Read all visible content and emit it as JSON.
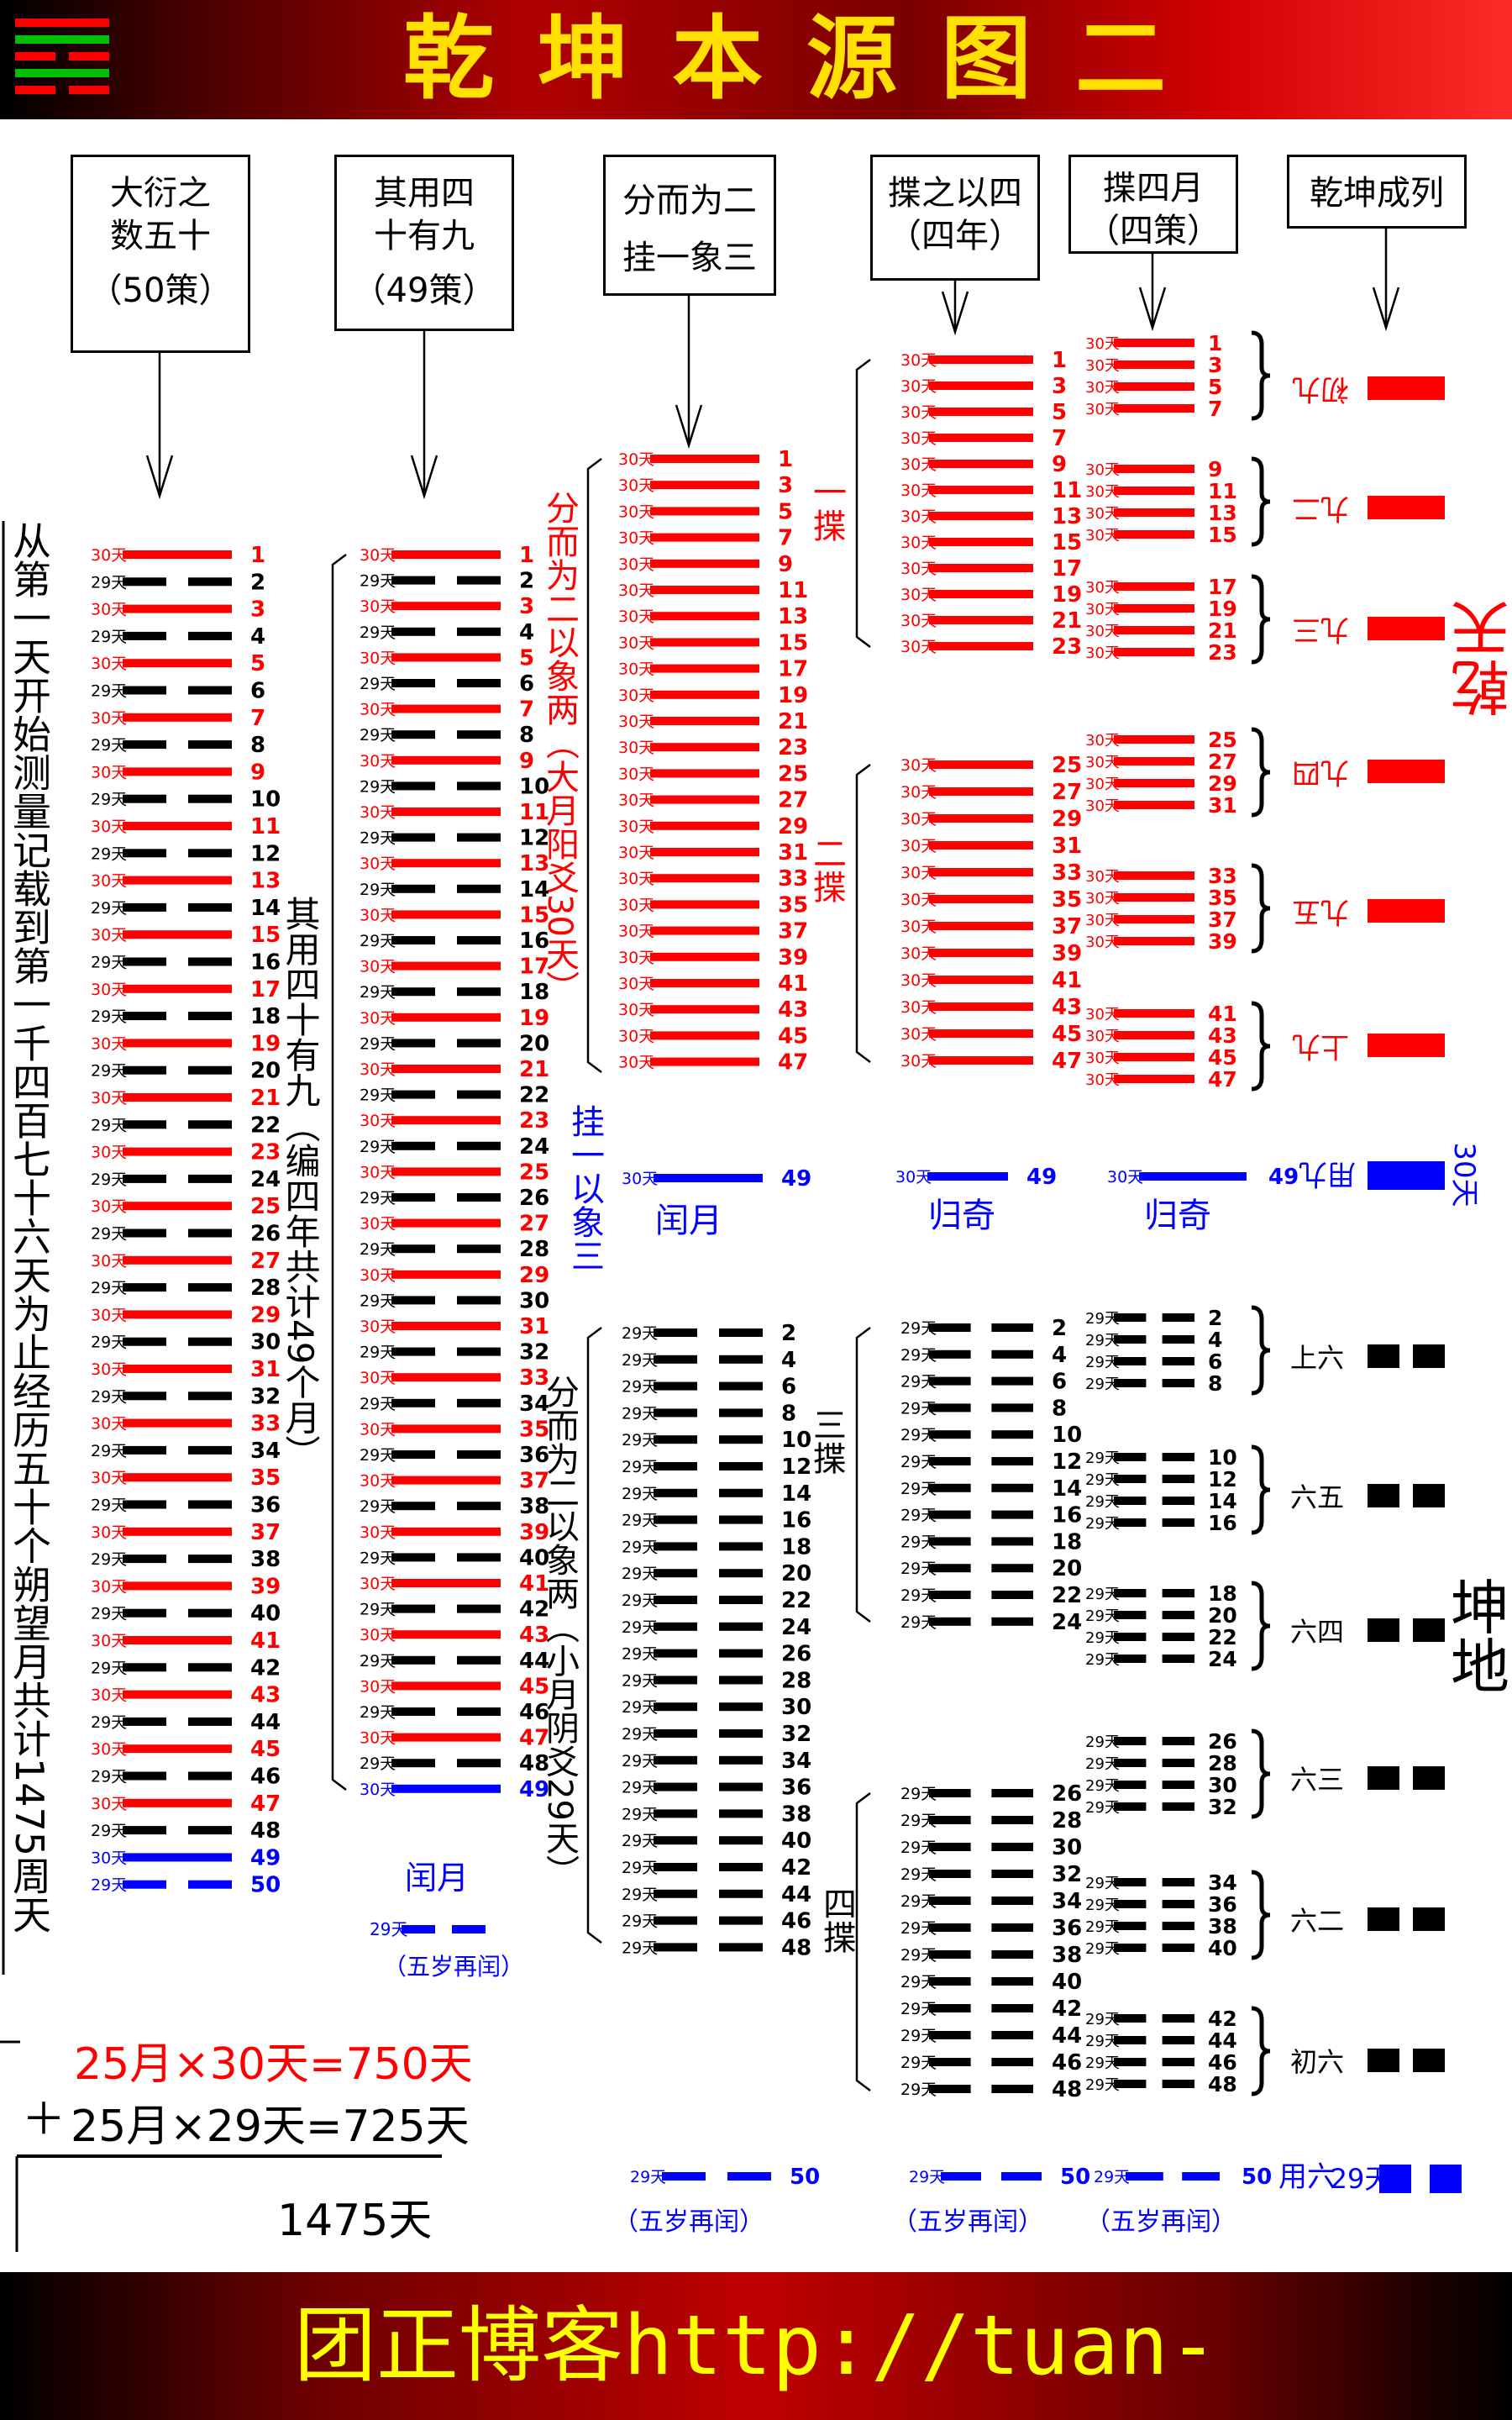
{
  "title": "乾坤本源图二",
  "footer": "团正博客http://tuan-zheng.blog.sohu.com",
  "headers": {
    "c1": {
      "line1": "大衍之",
      "line2": "数五十",
      "sub": "（50策）"
    },
    "c2": {
      "line1": "其用四",
      "line2": "十有九",
      "sub": "（49策）"
    },
    "c3": {
      "line1": "分而为二",
      "line2": "挂一象三"
    },
    "c4": {
      "line1": "揲之以四",
      "line2": "（四年）"
    },
    "c5": {
      "line1": "揲四月",
      "line2": "（四策）"
    },
    "c6": {
      "line1": "乾坤成列"
    }
  },
  "left_caption": "从第一天开始测量记载到第一千四百七十六天为止经历五十个朔望月共计1475周天",
  "col2_caption": "其用四十有九（编四年共计49个月）",
  "col3_caption_top": "分而为二以象两（大月阳爻30天）",
  "col3_caption_bottom": "分而为二以象两（小月阴爻29天）",
  "col3_guayi": "挂一以象三",
  "calc": {
    "line1": "25月×30天=750天",
    "plus": "＋",
    "line2": "25月×29天=725天",
    "result": "1475天"
  },
  "labels": {
    "d30": "30天",
    "d29": "29天",
    "run_month": "闰月",
    "gui_qi": "归奇",
    "wu_sui": "（五岁再闰）",
    "die1": "一揲",
    "die2": "二揲",
    "die3": "三揲",
    "die4": "四揲",
    "yong_jiu": "用九",
    "yong_liu": "用六",
    "qian_tian": "乾天",
    "kun_di": "坤地"
  },
  "qian_lines": [
    "初九",
    "九二",
    "九三",
    "九四",
    "九五",
    "上九"
  ],
  "kun_lines": [
    "上六",
    "六五",
    "六四",
    "六三",
    "六二",
    "初六"
  ],
  "colors": {
    "yang": "#ff0000",
    "yin": "#000000",
    "run": "#0000ff",
    "title": "#ffe000",
    "footer": "#ffff00"
  }
}
